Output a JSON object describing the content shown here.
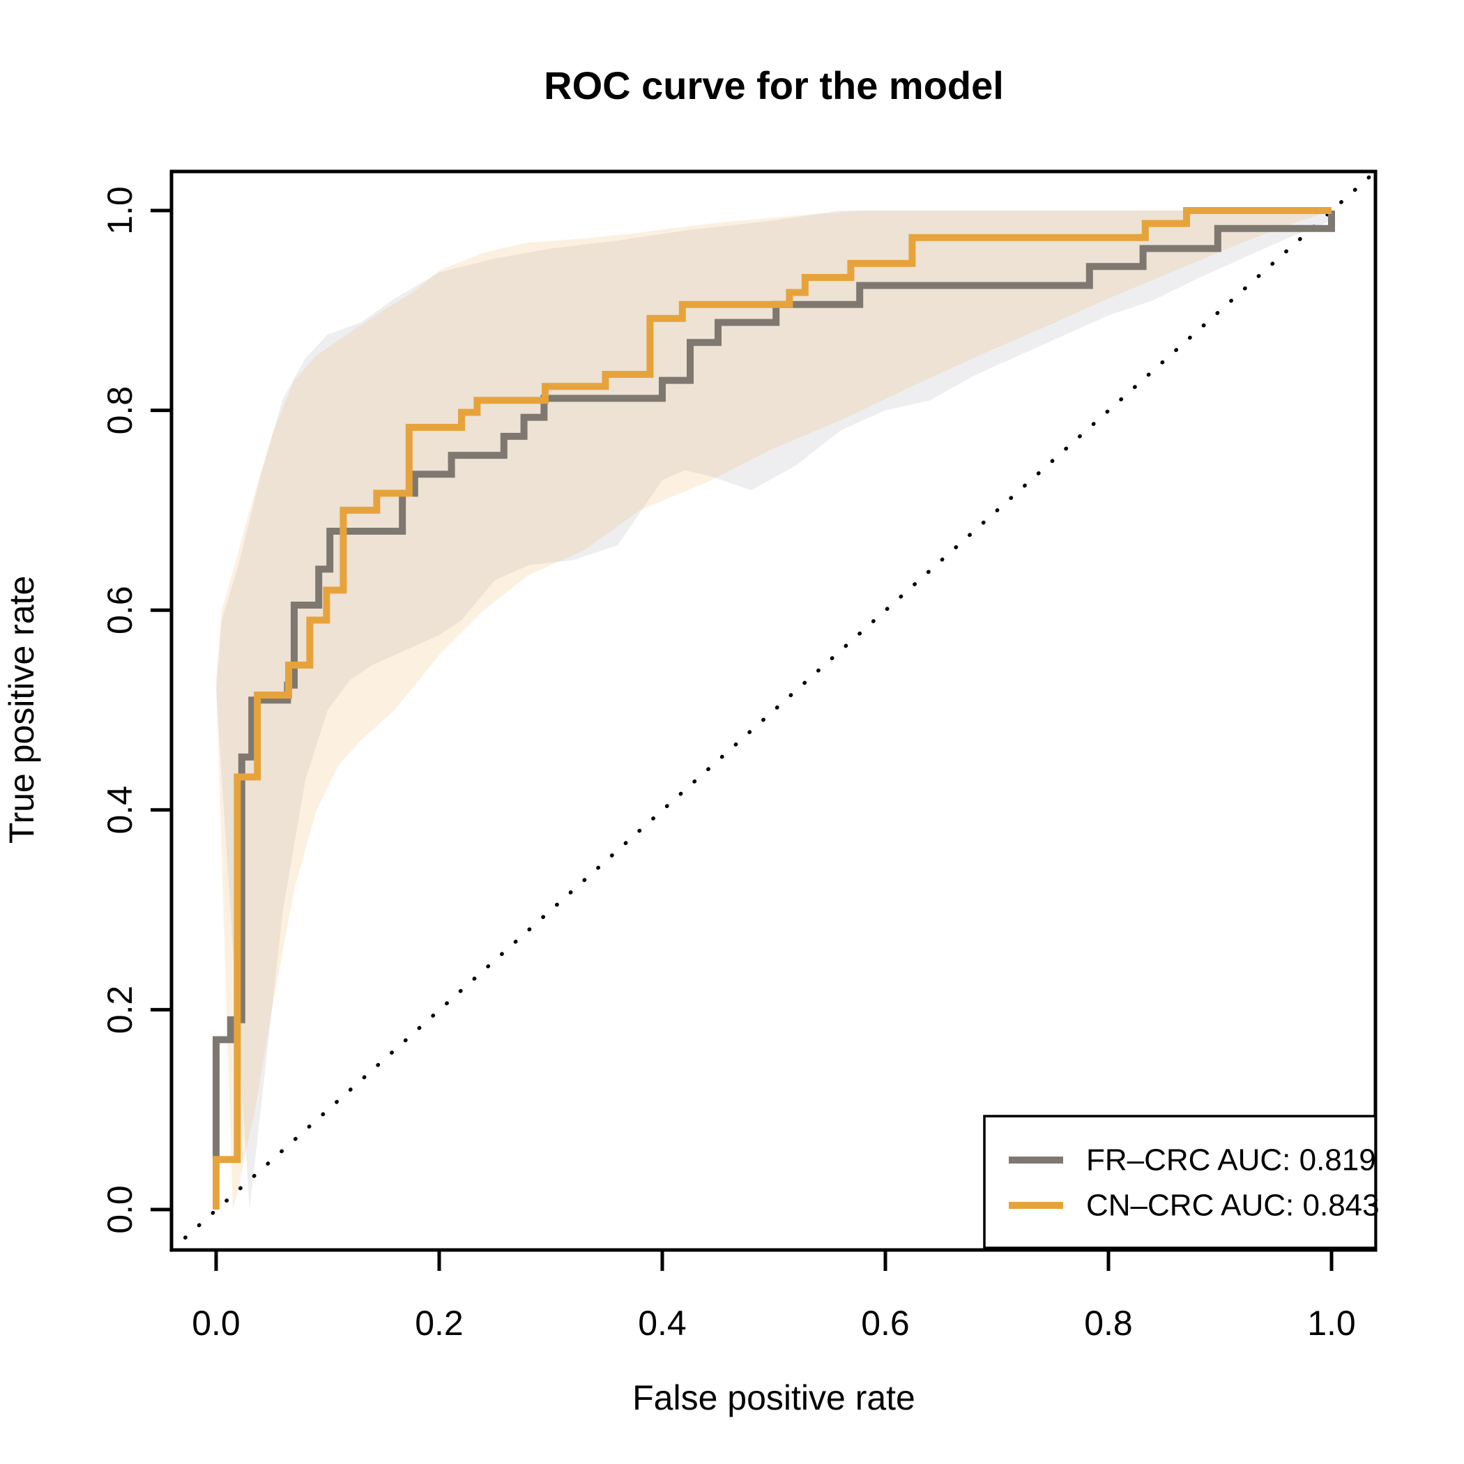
{
  "title": "ROC curve for the model",
  "axes": {
    "x": {
      "label": "False positive rate",
      "tick_labels": [
        "0.0",
        "0.2",
        "0.4",
        "0.6",
        "0.8",
        "1.0"
      ]
    },
    "y": {
      "label": "True positive rate",
      "tick_labels": [
        "0.0",
        "0.2",
        "0.4",
        "0.6",
        "0.8",
        "1.0"
      ]
    }
  },
  "legend": {
    "position": "bottom-right",
    "entries": [
      {
        "label": "FR–CRC AUC: 0.819",
        "color": "#7E7870"
      },
      {
        "label": "CN–CRC AUC: 0.843",
        "color": "#E7A33B"
      }
    ]
  },
  "chart_data": {
    "type": "line",
    "subtype": "roc-step-curves-with-confidence-bands",
    "title": "ROC curve for the model",
    "xlabel": "False positive rate",
    "ylabel": "True positive rate",
    "xlim": [
      0,
      1
    ],
    "ylim": [
      0,
      1
    ],
    "x_ticks": [
      0.0,
      0.2,
      0.4,
      0.6,
      0.8,
      1.0
    ],
    "y_ticks": [
      0.0,
      0.2,
      0.4,
      0.6,
      0.8,
      1.0
    ],
    "grid": false,
    "diagonal_reference": {
      "style": "dotted",
      "color": "#000000",
      "from": [
        0,
        0
      ],
      "to": [
        1,
        1
      ]
    },
    "series": [
      {
        "name": "FR-CRC",
        "auc": 0.819,
        "color": "#7E7870",
        "band_color": "rgba(150,150,160,0.16)",
        "points": [
          [
            0,
            0
          ],
          [
            0,
            0.17
          ],
          [
            0.013,
            0.17
          ],
          [
            0.013,
            0.19
          ],
          [
            0.023,
            0.19
          ],
          [
            0.023,
            0.453
          ],
          [
            0.032,
            0.453
          ],
          [
            0.032,
            0.51
          ],
          [
            0.064,
            0.51
          ],
          [
            0.064,
            0.525
          ],
          [
            0.07,
            0.525
          ],
          [
            0.07,
            0.605
          ],
          [
            0.092,
            0.605
          ],
          [
            0.092,
            0.641
          ],
          [
            0.102,
            0.641
          ],
          [
            0.102,
            0.679
          ],
          [
            0.167,
            0.679
          ],
          [
            0.167,
            0.717
          ],
          [
            0.178,
            0.717
          ],
          [
            0.178,
            0.736
          ],
          [
            0.211,
            0.736
          ],
          [
            0.211,
            0.755
          ],
          [
            0.258,
            0.755
          ],
          [
            0.258,
            0.774
          ],
          [
            0.276,
            0.774
          ],
          [
            0.276,
            0.793
          ],
          [
            0.294,
            0.793
          ],
          [
            0.294,
            0.812
          ],
          [
            0.4,
            0.812
          ],
          [
            0.4,
            0.83
          ],
          [
            0.425,
            0.83
          ],
          [
            0.425,
            0.868
          ],
          [
            0.45,
            0.868
          ],
          [
            0.45,
            0.888
          ],
          [
            0.502,
            0.888
          ],
          [
            0.502,
            0.906
          ],
          [
            0.577,
            0.906
          ],
          [
            0.577,
            0.925
          ],
          [
            0.783,
            0.925
          ],
          [
            0.783,
            0.944
          ],
          [
            0.831,
            0.944
          ],
          [
            0.831,
            0.962
          ],
          [
            0.898,
            0.962
          ],
          [
            0.898,
            0.982
          ],
          [
            1,
            0.982
          ],
          [
            1,
            1
          ]
        ],
        "band_upper": [
          [
            0,
            0.52
          ],
          [
            0.005,
            0.59
          ],
          [
            0.02,
            0.645
          ],
          [
            0.04,
            0.735
          ],
          [
            0.06,
            0.812
          ],
          [
            0.08,
            0.852
          ],
          [
            0.1,
            0.876
          ],
          [
            0.13,
            0.888
          ],
          [
            0.16,
            0.912
          ],
          [
            0.2,
            0.938
          ],
          [
            0.25,
            0.952
          ],
          [
            0.3,
            0.962
          ],
          [
            0.36,
            0.97
          ],
          [
            0.42,
            0.98
          ],
          [
            0.5,
            0.99
          ],
          [
            0.56,
            1
          ],
          [
            1,
            1
          ]
        ],
        "band_lower": [
          [
            0.03,
            0
          ],
          [
            0.035,
            0.05
          ],
          [
            0.045,
            0.15
          ],
          [
            0.06,
            0.3
          ],
          [
            0.08,
            0.43
          ],
          [
            0.1,
            0.5
          ],
          [
            0.12,
            0.53
          ],
          [
            0.14,
            0.545
          ],
          [
            0.17,
            0.56
          ],
          [
            0.2,
            0.575
          ],
          [
            0.22,
            0.59
          ],
          [
            0.25,
            0.63
          ],
          [
            0.28,
            0.645
          ],
          [
            0.32,
            0.65
          ],
          [
            0.36,
            0.665
          ],
          [
            0.4,
            0.73
          ],
          [
            0.42,
            0.74
          ],
          [
            0.44,
            0.735
          ],
          [
            0.48,
            0.72
          ],
          [
            0.52,
            0.745
          ],
          [
            0.56,
            0.78
          ],
          [
            0.6,
            0.8
          ],
          [
            0.64,
            0.81
          ],
          [
            0.68,
            0.835
          ],
          [
            0.72,
            0.855
          ],
          [
            0.76,
            0.875
          ],
          [
            0.8,
            0.895
          ],
          [
            0.84,
            0.91
          ],
          [
            0.88,
            0.932
          ],
          [
            0.92,
            0.952
          ],
          [
            0.96,
            0.972
          ],
          [
            1,
            0.99
          ],
          [
            1,
            1
          ]
        ]
      },
      {
        "name": "CN-CRC",
        "auc": 0.843,
        "color": "#E7A33B",
        "band_color": "rgba(233,163,56,0.15)",
        "points": [
          [
            0,
            0
          ],
          [
            0,
            0.05
          ],
          [
            0.019,
            0.05
          ],
          [
            0.019,
            0.433
          ],
          [
            0.037,
            0.433
          ],
          [
            0.037,
            0.515
          ],
          [
            0.065,
            0.515
          ],
          [
            0.065,
            0.545
          ],
          [
            0.084,
            0.545
          ],
          [
            0.084,
            0.59
          ],
          [
            0.099,
            0.59
          ],
          [
            0.099,
            0.62
          ],
          [
            0.114,
            0.62
          ],
          [
            0.114,
            0.7
          ],
          [
            0.144,
            0.7
          ],
          [
            0.144,
            0.717
          ],
          [
            0.173,
            0.717
          ],
          [
            0.173,
            0.783
          ],
          [
            0.22,
            0.783
          ],
          [
            0.22,
            0.798
          ],
          [
            0.234,
            0.798
          ],
          [
            0.234,
            0.81
          ],
          [
            0.295,
            0.81
          ],
          [
            0.295,
            0.824
          ],
          [
            0.349,
            0.824
          ],
          [
            0.349,
            0.836
          ],
          [
            0.389,
            0.836
          ],
          [
            0.389,
            0.892
          ],
          [
            0.418,
            0.892
          ],
          [
            0.418,
            0.906
          ],
          [
            0.514,
            0.906
          ],
          [
            0.514,
            0.918
          ],
          [
            0.528,
            0.918
          ],
          [
            0.528,
            0.933
          ],
          [
            0.569,
            0.933
          ],
          [
            0.569,
            0.947
          ],
          [
            0.624,
            0.947
          ],
          [
            0.624,
            0.973
          ],
          [
            0.833,
            0.973
          ],
          [
            0.833,
            0.987
          ],
          [
            0.87,
            0.987
          ],
          [
            0.87,
            1
          ],
          [
            1,
            1
          ]
        ],
        "band_upper": [
          [
            0,
            0.53
          ],
          [
            0.005,
            0.6
          ],
          [
            0.019,
            0.655
          ],
          [
            0.03,
            0.7
          ],
          [
            0.05,
            0.775
          ],
          [
            0.07,
            0.83
          ],
          [
            0.09,
            0.855
          ],
          [
            0.12,
            0.878
          ],
          [
            0.15,
            0.9
          ],
          [
            0.18,
            0.921
          ],
          [
            0.2,
            0.94
          ],
          [
            0.24,
            0.958
          ],
          [
            0.28,
            0.968
          ],
          [
            0.33,
            0.972
          ],
          [
            0.38,
            0.978
          ],
          [
            0.45,
            0.988
          ],
          [
            0.52,
            0.995
          ],
          [
            0.58,
            1
          ],
          [
            1,
            1
          ]
        ],
        "band_lower": [
          [
            0.015,
            0
          ],
          [
            0.02,
            0.02
          ],
          [
            0.025,
            0.05
          ],
          [
            0.035,
            0.1
          ],
          [
            0.05,
            0.2
          ],
          [
            0.07,
            0.32
          ],
          [
            0.09,
            0.4
          ],
          [
            0.11,
            0.445
          ],
          [
            0.13,
            0.47
          ],
          [
            0.16,
            0.5
          ],
          [
            0.2,
            0.555
          ],
          [
            0.24,
            0.6
          ],
          [
            0.28,
            0.635
          ],
          [
            0.33,
            0.66
          ],
          [
            0.38,
            0.7
          ],
          [
            0.44,
            0.728
          ],
          [
            0.5,
            0.762
          ],
          [
            0.56,
            0.79
          ],
          [
            0.62,
            0.822
          ],
          [
            0.68,
            0.853
          ],
          [
            0.74,
            0.882
          ],
          [
            0.8,
            0.912
          ],
          [
            0.86,
            0.94
          ],
          [
            0.92,
            0.968
          ],
          [
            0.96,
            0.985
          ],
          [
            1,
            1
          ]
        ]
      }
    ],
    "legend_entries": [
      "FR–CRC AUC: 0.819",
      "CN–CRC AUC: 0.843"
    ]
  }
}
